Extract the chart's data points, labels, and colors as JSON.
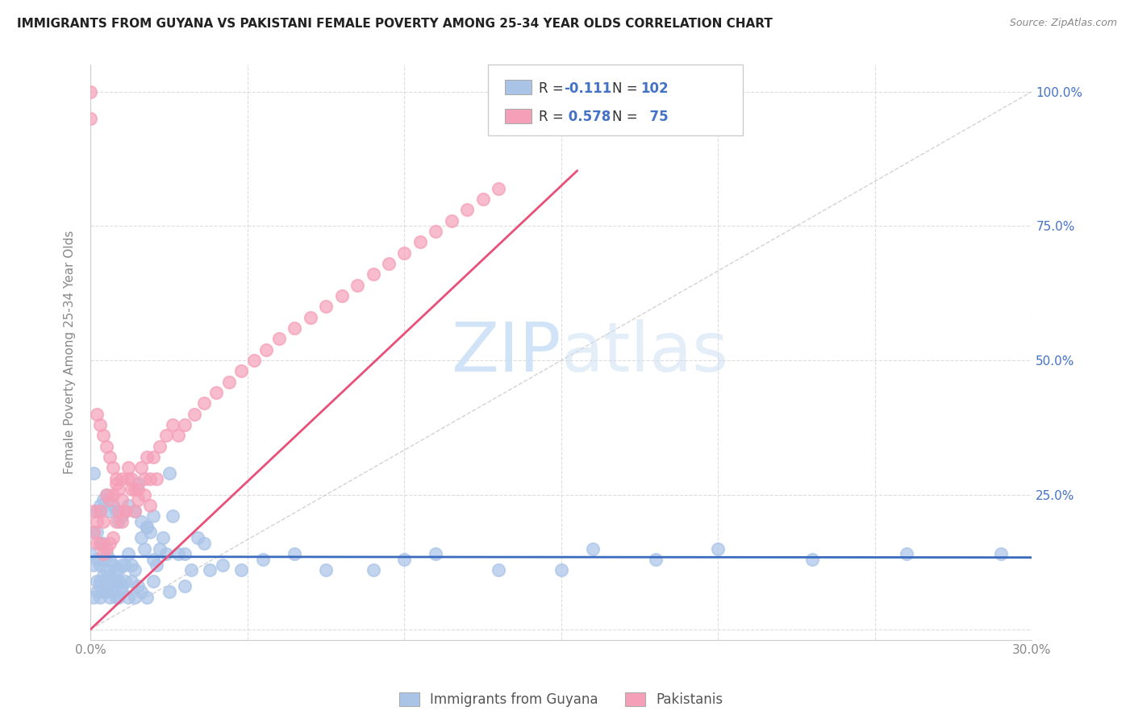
{
  "title": "IMMIGRANTS FROM GUYANA VS PAKISTANI FEMALE POVERTY AMONG 25-34 YEAR OLDS CORRELATION CHART",
  "source": "Source: ZipAtlas.com",
  "ylabel": "Female Poverty Among 25-34 Year Olds",
  "xlim": [
    0,
    0.3
  ],
  "ylim": [
    -0.02,
    1.05
  ],
  "guyana_R": "-0.111",
  "guyana_N": "102",
  "pakistani_R": "0.578",
  "pakistani_N": "75",
  "guyana_color": "#aac4e8",
  "pakistani_color": "#f5a0b8",
  "guyana_line_color": "#3a6bbf",
  "pakistani_line_color": "#e8507a",
  "watermark_color": "#cce0f5",
  "guyana_x": [
    0.0,
    0.001,
    0.001,
    0.002,
    0.002,
    0.002,
    0.003,
    0.003,
    0.003,
    0.003,
    0.004,
    0.004,
    0.004,
    0.005,
    0.005,
    0.005,
    0.006,
    0.006,
    0.007,
    0.007,
    0.008,
    0.008,
    0.009,
    0.009,
    0.01,
    0.01,
    0.011,
    0.011,
    0.012,
    0.013,
    0.013,
    0.014,
    0.015,
    0.016,
    0.017,
    0.018,
    0.019,
    0.02,
    0.021,
    0.022,
    0.023,
    0.024,
    0.025,
    0.026,
    0.028,
    0.03,
    0.032,
    0.034,
    0.036,
    0.038,
    0.042,
    0.048,
    0.055,
    0.065,
    0.075,
    0.09,
    0.1,
    0.11,
    0.13,
    0.15,
    0.16,
    0.18,
    0.2,
    0.23,
    0.26,
    0.29,
    0.001,
    0.002,
    0.003,
    0.004,
    0.005,
    0.006,
    0.007,
    0.008,
    0.009,
    0.01,
    0.012,
    0.014,
    0.016,
    0.018,
    0.02,
    0.001,
    0.002,
    0.003,
    0.004,
    0.005,
    0.006,
    0.007,
    0.008,
    0.009,
    0.01,
    0.012,
    0.014,
    0.016,
    0.018,
    0.003,
    0.005,
    0.007,
    0.015,
    0.02,
    0.025,
    0.03
  ],
  "guyana_y": [
    0.14,
    0.18,
    0.12,
    0.18,
    0.13,
    0.09,
    0.16,
    0.12,
    0.09,
    0.22,
    0.13,
    0.1,
    0.16,
    0.14,
    0.11,
    0.09,
    0.13,
    0.1,
    0.12,
    0.09,
    0.11,
    0.09,
    0.11,
    0.09,
    0.12,
    0.08,
    0.12,
    0.09,
    0.14,
    0.12,
    0.09,
    0.11,
    0.27,
    0.17,
    0.15,
    0.19,
    0.18,
    0.13,
    0.12,
    0.15,
    0.17,
    0.14,
    0.29,
    0.21,
    0.14,
    0.14,
    0.11,
    0.17,
    0.16,
    0.11,
    0.12,
    0.11,
    0.13,
    0.14,
    0.11,
    0.11,
    0.13,
    0.14,
    0.11,
    0.11,
    0.15,
    0.13,
    0.15,
    0.13,
    0.14,
    0.14,
    0.29,
    0.22,
    0.23,
    0.24,
    0.25,
    0.22,
    0.23,
    0.22,
    0.2,
    0.21,
    0.23,
    0.22,
    0.2,
    0.19,
    0.21,
    0.06,
    0.07,
    0.06,
    0.07,
    0.07,
    0.06,
    0.07,
    0.06,
    0.06,
    0.07,
    0.06,
    0.06,
    0.07,
    0.06,
    0.08,
    0.07,
    0.08,
    0.08,
    0.09,
    0.07,
    0.08
  ],
  "pakistani_x": [
    0.001,
    0.001,
    0.002,
    0.002,
    0.003,
    0.003,
    0.004,
    0.004,
    0.005,
    0.005,
    0.006,
    0.006,
    0.007,
    0.007,
    0.008,
    0.008,
    0.009,
    0.01,
    0.01,
    0.011,
    0.012,
    0.013,
    0.014,
    0.015,
    0.016,
    0.017,
    0.018,
    0.019,
    0.02,
    0.022,
    0.024,
    0.026,
    0.028,
    0.03,
    0.033,
    0.036,
    0.04,
    0.044,
    0.048,
    0.052,
    0.056,
    0.06,
    0.065,
    0.07,
    0.075,
    0.08,
    0.085,
    0.09,
    0.095,
    0.1,
    0.105,
    0.11,
    0.115,
    0.12,
    0.125,
    0.13,
    0.0,
    0.0,
    0.002,
    0.003,
    0.004,
    0.005,
    0.006,
    0.007,
    0.008,
    0.009,
    0.01,
    0.011,
    0.012,
    0.013,
    0.014,
    0.015,
    0.017,
    0.019,
    0.021
  ],
  "pakistani_y": [
    0.18,
    0.22,
    0.16,
    0.2,
    0.16,
    0.22,
    0.14,
    0.2,
    0.15,
    0.25,
    0.16,
    0.24,
    0.17,
    0.25,
    0.2,
    0.27,
    0.22,
    0.2,
    0.28,
    0.22,
    0.28,
    0.26,
    0.22,
    0.26,
    0.3,
    0.28,
    0.32,
    0.28,
    0.32,
    0.34,
    0.36,
    0.38,
    0.36,
    0.38,
    0.4,
    0.42,
    0.44,
    0.46,
    0.48,
    0.5,
    0.52,
    0.54,
    0.56,
    0.58,
    0.6,
    0.62,
    0.64,
    0.66,
    0.68,
    0.7,
    0.72,
    0.74,
    0.76,
    0.78,
    0.8,
    0.82,
    1.0,
    0.95,
    0.4,
    0.38,
    0.36,
    0.34,
    0.32,
    0.3,
    0.28,
    0.26,
    0.24,
    0.22,
    0.3,
    0.28,
    0.26,
    0.24,
    0.25,
    0.23,
    0.28
  ]
}
